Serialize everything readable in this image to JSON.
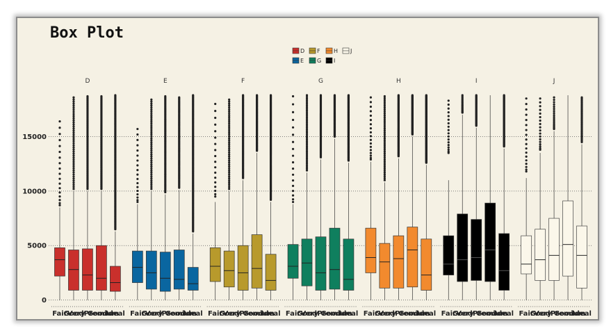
{
  "chart_data": {
    "type": "box",
    "title": "Box Plot",
    "xlabel": "",
    "ylabel": "",
    "ylim": [
      -600,
      19500
    ],
    "y_ticks": [
      0,
      5000,
      10000,
      15000
    ],
    "grid": "horizontal dotted",
    "legend_position": "top-center",
    "categories": [
      "Fair",
      "Good",
      "Very Good",
      "Premium",
      "Ideal"
    ],
    "facets": [
      {
        "name": "D",
        "color": "#c9302c",
        "boxes": [
          {
            "category": "Fair",
            "lower_whisker": 0,
            "q1": 2200,
            "median": 3700,
            "q3": 4800,
            "upper_whisker": 8500,
            "outliers_min": 8700,
            "outliers_max": 16400,
            "outlier_density": "low"
          },
          {
            "category": "Good",
            "lower_whisker": 0,
            "q1": 900,
            "median": 2800,
            "q3": 4600,
            "upper_whisker": 10000,
            "outliers_min": 10200,
            "outliers_max": 18600,
            "outlier_density": "medium"
          },
          {
            "category": "Very Good",
            "lower_whisker": 0,
            "q1": 900,
            "median": 2300,
            "q3": 4700,
            "upper_whisker": 10000,
            "outliers_min": 10200,
            "outliers_max": 18700,
            "outlier_density": "high"
          },
          {
            "category": "Premium",
            "lower_whisker": 0,
            "q1": 900,
            "median": 2000,
            "q3": 5000,
            "upper_whisker": 10000,
            "outliers_min": 10200,
            "outliers_max": 18700,
            "outlier_density": "high"
          },
          {
            "category": "Ideal",
            "lower_whisker": 0,
            "q1": 800,
            "median": 1600,
            "q3": 3100,
            "upper_whisker": 6300,
            "outliers_min": 6500,
            "outliers_max": 18800,
            "outlier_density": "very-high"
          }
        ]
      },
      {
        "name": "E",
        "color": "#0a66a0",
        "boxes": [
          {
            "category": "Fair",
            "lower_whisker": 0,
            "q1": 1600,
            "median": 3000,
            "q3": 4500,
            "upper_whisker": 8800,
            "outliers_min": 9000,
            "outliers_max": 15700,
            "outlier_density": "low"
          },
          {
            "category": "Good",
            "lower_whisker": 0,
            "q1": 1000,
            "median": 2500,
            "q3": 4500,
            "upper_whisker": 10000,
            "outliers_min": 10200,
            "outliers_max": 18400,
            "outlier_density": "medium"
          },
          {
            "category": "Very Good",
            "lower_whisker": 0,
            "q1": 800,
            "median": 2000,
            "q3": 4400,
            "upper_whisker": 9700,
            "outliers_min": 9900,
            "outliers_max": 18700,
            "outlier_density": "high"
          },
          {
            "category": "Premium",
            "lower_whisker": 0,
            "q1": 1000,
            "median": 1900,
            "q3": 4600,
            "upper_whisker": 10100,
            "outliers_min": 10300,
            "outliers_max": 18600,
            "outlier_density": "high"
          },
          {
            "category": "Ideal",
            "lower_whisker": 0,
            "q1": 900,
            "median": 1500,
            "q3": 3000,
            "upper_whisker": 6100,
            "outliers_min": 6300,
            "outliers_max": 18800,
            "outlier_density": "very-high"
          }
        ]
      },
      {
        "name": "F",
        "color": "#b89a2c",
        "boxes": [
          {
            "category": "Fair",
            "lower_whisker": 0,
            "q1": 1700,
            "median": 3100,
            "q3": 4800,
            "upper_whisker": 9000,
            "outliers_min": 9500,
            "outliers_max": 18000,
            "outlier_density": "low"
          },
          {
            "category": "Good",
            "lower_whisker": 0,
            "q1": 1200,
            "median": 2700,
            "q3": 4500,
            "upper_whisker": 10000,
            "outliers_min": 10200,
            "outliers_max": 18400,
            "outlier_density": "medium"
          },
          {
            "category": "Very Good",
            "lower_whisker": 0,
            "q1": 900,
            "median": 2500,
            "q3": 5000,
            "upper_whisker": 11000,
            "outliers_min": 11200,
            "outliers_max": 18800,
            "outlier_density": "high"
          },
          {
            "category": "Premium",
            "lower_whisker": 0,
            "q1": 1100,
            "median": 2900,
            "q3": 6000,
            "upper_whisker": 13500,
            "outliers_min": 13700,
            "outliers_max": 18800,
            "outlier_density": "high"
          },
          {
            "category": "Ideal",
            "lower_whisker": 0,
            "q1": 900,
            "median": 1800,
            "q3": 4200,
            "upper_whisker": 9000,
            "outliers_min": 9200,
            "outliers_max": 18800,
            "outlier_density": "very-high"
          }
        ]
      },
      {
        "name": "G",
        "color": "#0f7f5e",
        "boxes": [
          {
            "category": "Fair",
            "lower_whisker": 0,
            "q1": 2000,
            "median": 3100,
            "q3": 5100,
            "upper_whisker": 8800,
            "outliers_min": 9000,
            "outliers_max": 18700,
            "outlier_density": "low"
          },
          {
            "category": "Good",
            "lower_whisker": 0,
            "q1": 1300,
            "median": 3400,
            "q3": 5600,
            "upper_whisker": 11700,
            "outliers_min": 11900,
            "outliers_max": 18800,
            "outlier_density": "medium"
          },
          {
            "category": "Very Good",
            "lower_whisker": 0,
            "q1": 900,
            "median": 2500,
            "q3": 5800,
            "upper_whisker": 12900,
            "outliers_min": 13100,
            "outliers_max": 18800,
            "outlier_density": "high"
          },
          {
            "category": "Premium",
            "lower_whisker": 0,
            "q1": 1000,
            "median": 2800,
            "q3": 6600,
            "upper_whisker": 14800,
            "outliers_min": 15000,
            "outliers_max": 18800,
            "outlier_density": "high"
          },
          {
            "category": "Ideal",
            "lower_whisker": 0,
            "q1": 900,
            "median": 1900,
            "q3": 5600,
            "upper_whisker": 12600,
            "outliers_min": 12800,
            "outliers_max": 18800,
            "outlier_density": "very-high"
          }
        ]
      },
      {
        "name": "H",
        "color": "#f28a2e",
        "boxes": [
          {
            "category": "Fair",
            "lower_whisker": 0,
            "q1": 2500,
            "median": 3900,
            "q3": 6600,
            "upper_whisker": 12700,
            "outliers_min": 12900,
            "outliers_max": 18600,
            "outlier_density": "low"
          },
          {
            "category": "Good",
            "lower_whisker": 0,
            "q1": 1100,
            "median": 3500,
            "q3": 5200,
            "upper_whisker": 10800,
            "outliers_min": 11000,
            "outliers_max": 18700,
            "outlier_density": "medium"
          },
          {
            "category": "Very Good",
            "lower_whisker": 0,
            "q1": 1100,
            "median": 3800,
            "q3": 5900,
            "upper_whisker": 13000,
            "outliers_min": 13200,
            "outliers_max": 18800,
            "outlier_density": "high"
          },
          {
            "category": "Premium",
            "lower_whisker": 0,
            "q1": 1200,
            "median": 4600,
            "q3": 6700,
            "upper_whisker": 15000,
            "outliers_min": 15200,
            "outliers_max": 18800,
            "outlier_density": "high"
          },
          {
            "category": "Ideal",
            "lower_whisker": 0,
            "q1": 900,
            "median": 2300,
            "q3": 5600,
            "upper_whisker": 12400,
            "outliers_min": 12600,
            "outliers_max": 18800,
            "outlier_density": "very-high"
          }
        ]
      },
      {
        "name": "I",
        "color": "#000000",
        "boxes": [
          {
            "category": "Fair",
            "lower_whisker": 0,
            "q1": 2300,
            "median": 3300,
            "q3": 5900,
            "upper_whisker": 11000,
            "outliers_min": 13500,
            "outliers_max": 18300,
            "outlier_density": "low"
          },
          {
            "category": "Good",
            "lower_whisker": 0,
            "q1": 1700,
            "median": 3700,
            "q3": 7900,
            "upper_whisker": 17000,
            "outliers_min": 17200,
            "outliers_max": 18800,
            "outlier_density": "low"
          },
          {
            "category": "Very Good",
            "lower_whisker": 0,
            "q1": 1800,
            "median": 3900,
            "q3": 7400,
            "upper_whisker": 15800,
            "outliers_min": 16000,
            "outliers_max": 18800,
            "outlier_density": "medium"
          },
          {
            "category": "Premium",
            "lower_whisker": 0,
            "q1": 1700,
            "median": 4600,
            "q3": 8900,
            "upper_whisker": 18800,
            "outliers_min": 18800,
            "outliers_max": 18800,
            "outlier_density": "none"
          },
          {
            "category": "Ideal",
            "lower_whisker": 0,
            "q1": 900,
            "median": 2700,
            "q3": 6100,
            "upper_whisker": 13900,
            "outliers_min": 14100,
            "outliers_max": 18800,
            "outlier_density": "high"
          }
        ]
      },
      {
        "name": "J",
        "color": "#fbf7ea",
        "boxes": [
          {
            "category": "Fair",
            "lower_whisker": 0,
            "q1": 2400,
            "median": 3300,
            "q3": 5900,
            "upper_whisker": 11200,
            "outliers_min": 11800,
            "outliers_max": 18500,
            "outlier_density": "low"
          },
          {
            "category": "Good",
            "lower_whisker": 0,
            "q1": 1800,
            "median": 3700,
            "q3": 6500,
            "upper_whisker": 13500,
            "outliers_min": 13800,
            "outliers_max": 18500,
            "outlier_density": "low"
          },
          {
            "category": "Very Good",
            "lower_whisker": 0,
            "q1": 1800,
            "median": 4100,
            "q3": 7500,
            "upper_whisker": 15500,
            "outliers_min": 15700,
            "outliers_max": 18600,
            "outlier_density": "low"
          },
          {
            "category": "Premium",
            "lower_whisker": 0,
            "q1": 2200,
            "median": 5100,
            "q3": 9100,
            "upper_whisker": 18800,
            "outliers_min": 18800,
            "outliers_max": 18800,
            "outlier_density": "none"
          },
          {
            "category": "Ideal",
            "lower_whisker": 0,
            "q1": 1100,
            "median": 4100,
            "q3": 6800,
            "upper_whisker": 14300,
            "outliers_min": 14500,
            "outliers_max": 18600,
            "outlier_density": "medium"
          }
        ]
      }
    ],
    "legend": [
      {
        "label": "D",
        "color": "#c9302c"
      },
      {
        "label": "F",
        "color": "#b89a2c"
      },
      {
        "label": "H",
        "color": "#f28a2e"
      },
      {
        "label": "J",
        "color": "#fbf7ea"
      },
      {
        "label": "E",
        "color": "#0a66a0"
      },
      {
        "label": "G",
        "color": "#0f7f5e"
      },
      {
        "label": "I",
        "color": "#000000"
      }
    ],
    "colors": {
      "background": "#f5f1e4",
      "gridline": "#555555",
      "outline": "#333333"
    }
  }
}
